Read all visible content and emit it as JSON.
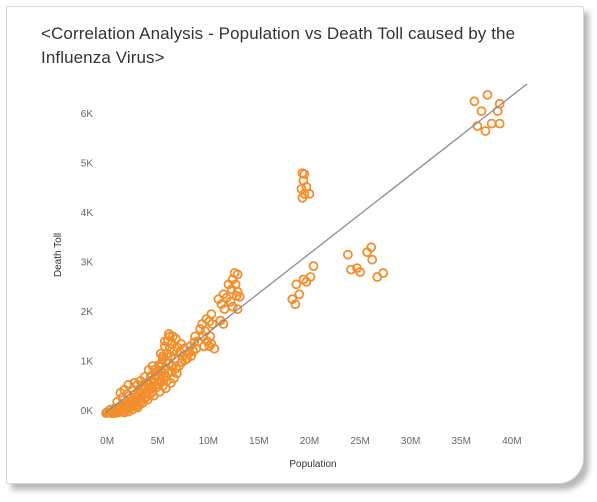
{
  "title": "<Correlation Analysis - Population vs Death Toll caused by the Influenza Virus>",
  "colors": {
    "marker": "#F28E2B",
    "trend_line": "#8c8c8c",
    "axis_text": "#666666"
  },
  "chart_data": {
    "type": "scatter",
    "title": "<Correlation Analysis - Population vs Death Toll caused by the Influenza Virus>",
    "xlabel": "Population",
    "ylabel": "Death Toll",
    "xlim": [
      -1000000,
      41500000
    ],
    "ylim": [
      -150,
      6600
    ],
    "x_ticks": [
      0,
      5000000,
      10000000,
      15000000,
      20000000,
      25000000,
      30000000,
      35000000,
      40000000
    ],
    "x_tick_labels": [
      "0M",
      "5M",
      "10M",
      "15M",
      "20M",
      "25M",
      "30M",
      "35M",
      "40M"
    ],
    "y_ticks": [
      0,
      1000,
      2000,
      3000,
      4000,
      5000,
      6000
    ],
    "y_tick_labels": [
      "0K",
      "1K",
      "2K",
      "3K",
      "4K",
      "5K",
      "6K"
    ],
    "grid": false,
    "marker": "hollow-circle",
    "trend_line": {
      "x": [
        -200000,
        41500000
      ],
      "y": [
        -50,
        6600
      ]
    },
    "points": [
      [
        36300000,
        6250
      ],
      [
        37600000,
        6380
      ],
      [
        38800000,
        6200
      ],
      [
        37000000,
        6050
      ],
      [
        38600000,
        6050
      ],
      [
        36600000,
        5750
      ],
      [
        37400000,
        5650
      ],
      [
        38000000,
        5800
      ],
      [
        38800000,
        5800
      ],
      [
        19300000,
        4800
      ],
      [
        19500000,
        4780
      ],
      [
        19400000,
        4650
      ],
      [
        19700000,
        4520
      ],
      [
        19200000,
        4480
      ],
      [
        19500000,
        4380
      ],
      [
        20000000,
        4380
      ],
      [
        19300000,
        4300
      ],
      [
        23800000,
        3150
      ],
      [
        24100000,
        2850
      ],
      [
        24700000,
        2880
      ],
      [
        25000000,
        2800
      ],
      [
        25700000,
        3200
      ],
      [
        26100000,
        3300
      ],
      [
        26200000,
        3050
      ],
      [
        26700000,
        2700
      ],
      [
        27300000,
        2780
      ],
      [
        20400000,
        2920
      ],
      [
        19400000,
        2650
      ],
      [
        19700000,
        2600
      ],
      [
        18700000,
        2550
      ],
      [
        20100000,
        2700
      ],
      [
        18300000,
        2250
      ],
      [
        18600000,
        2150
      ],
      [
        19000000,
        2350
      ],
      [
        12600000,
        2780
      ],
      [
        12900000,
        2750
      ],
      [
        12400000,
        2650
      ],
      [
        12700000,
        2550
      ],
      [
        12300000,
        2450
      ],
      [
        12800000,
        2320
      ],
      [
        13100000,
        2300
      ],
      [
        11500000,
        2350
      ],
      [
        11800000,
        2280
      ],
      [
        12200000,
        2200
      ],
      [
        12400000,
        2100
      ],
      [
        12900000,
        2050
      ],
      [
        11000000,
        2250
      ],
      [
        11300000,
        2150
      ],
      [
        11600000,
        2050
      ],
      [
        10300000,
        1950
      ],
      [
        9800000,
        1850
      ],
      [
        10100000,
        1800
      ],
      [
        10400000,
        1750
      ],
      [
        11200000,
        1820
      ],
      [
        11500000,
        1750
      ],
      [
        9700000,
        1600
      ],
      [
        10200000,
        1500
      ],
      [
        9500000,
        1500
      ],
      [
        9900000,
        1400
      ],
      [
        10300000,
        1350
      ],
      [
        9600000,
        1300
      ],
      [
        10100000,
        1300
      ],
      [
        8600000,
        1380
      ],
      [
        8200000,
        1300
      ],
      [
        8500000,
        1200
      ],
      [
        8000000,
        1150
      ],
      [
        7900000,
        1050
      ],
      [
        8300000,
        1100
      ],
      [
        8800000,
        1250
      ],
      [
        6100000,
        1550
      ],
      [
        6500000,
        1500
      ],
      [
        6800000,
        1450
      ],
      [
        6000000,
        1400
      ],
      [
        6400000,
        1350
      ],
      [
        5700000,
        1300
      ],
      [
        6200000,
        1250
      ],
      [
        6600000,
        1200
      ],
      [
        5900000,
        1150
      ],
      [
        6300000,
        1100
      ],
      [
        5500000,
        1100
      ],
      [
        6700000,
        1050
      ],
      [
        5800000,
        1000
      ],
      [
        6100000,
        950
      ],
      [
        5400000,
        950
      ],
      [
        6500000,
        900
      ],
      [
        5200000,
        880
      ],
      [
        5700000,
        850
      ],
      [
        6800000,
        850
      ],
      [
        5000000,
        800
      ],
      [
        5400000,
        780
      ],
      [
        6000000,
        760
      ],
      [
        6400000,
        780
      ],
      [
        4800000,
        720
      ],
      [
        5100000,
        700
      ],
      [
        5600000,
        680
      ],
      [
        4700000,
        640
      ],
      [
        5300000,
        620
      ],
      [
        5900000,
        600
      ],
      [
        4300000,
        600
      ],
      [
        4600000,
        560
      ],
      [
        5000000,
        540
      ],
      [
        4100000,
        520
      ],
      [
        4400000,
        480
      ],
      [
        4900000,
        470
      ],
      [
        5500000,
        500
      ],
      [
        3800000,
        460
      ],
      [
        4200000,
        440
      ],
      [
        3600000,
        420
      ],
      [
        4000000,
        390
      ],
      [
        4500000,
        380
      ],
      [
        3400000,
        370
      ],
      [
        3800000,
        340
      ],
      [
        4200000,
        320
      ],
      [
        3100000,
        330
      ],
      [
        3500000,
        300
      ],
      [
        3900000,
        280
      ],
      [
        2900000,
        280
      ],
      [
        3300000,
        250
      ],
      [
        3700000,
        240
      ],
      [
        2600000,
        230
      ],
      [
        3000000,
        210
      ],
      [
        3400000,
        190
      ],
      [
        2400000,
        190
      ],
      [
        2800000,
        170
      ],
      [
        3200000,
        150
      ],
      [
        2200000,
        150
      ],
      [
        2600000,
        130
      ],
      [
        3000000,
        110
      ],
      [
        2000000,
        120
      ],
      [
        2400000,
        100
      ],
      [
        2800000,
        80
      ],
      [
        1800000,
        90
      ],
      [
        2200000,
        70
      ],
      [
        1600000,
        60
      ],
      [
        2000000,
        40
      ],
      [
        1400000,
        40
      ],
      [
        1800000,
        20
      ],
      [
        1200000,
        20
      ],
      [
        1600000,
        0
      ],
      [
        1000000,
        0
      ],
      [
        1400000,
        -20
      ],
      [
        800000,
        -10
      ],
      [
        1200000,
        -30
      ],
      [
        600000,
        -20
      ],
      [
        1000000,
        -40
      ],
      [
        400000,
        -30
      ],
      [
        800000,
        -50
      ],
      [
        200000,
        -40
      ],
      [
        600000,
        -50
      ],
      [
        0,
        -30
      ],
      [
        400000,
        -50
      ],
      [
        -100000,
        -50
      ],
      [
        300000,
        20
      ],
      [
        700000,
        40
      ],
      [
        1100000,
        60
      ],
      [
        1500000,
        100
      ],
      [
        1900000,
        140
      ],
      [
        2300000,
        240
      ],
      [
        2700000,
        320
      ],
      [
        3100000,
        410
      ],
      [
        3500000,
        510
      ],
      [
        3900000,
        560
      ],
      [
        4300000,
        700
      ],
      [
        4700000,
        820
      ],
      [
        5100000,
        920
      ],
      [
        5500000,
        1050
      ],
      [
        3000000,
        520
      ],
      [
        2500000,
        420
      ],
      [
        2000000,
        330
      ],
      [
        1500000,
        260
      ],
      [
        1000000,
        180
      ],
      [
        1700000,
        420
      ],
      [
        1300000,
        360
      ],
      [
        2100000,
        520
      ],
      [
        3300000,
        600
      ],
      [
        2700000,
        560
      ],
      [
        3700000,
        680
      ],
      [
        4100000,
        820
      ],
      [
        4500000,
        900
      ],
      [
        5700000,
        1400
      ],
      [
        6200000,
        1500
      ],
      [
        5300000,
        1150
      ],
      [
        6900000,
        1280
      ],
      [
        7200000,
        1180
      ],
      [
        7500000,
        1100
      ],
      [
        7400000,
        980
      ],
      [
        7700000,
        1020
      ],
      [
        7100000,
        900
      ],
      [
        6900000,
        750
      ],
      [
        6600000,
        650
      ],
      [
        6300000,
        560
      ],
      [
        5800000,
        450
      ],
      [
        5200000,
        380
      ],
      [
        4600000,
        300
      ],
      [
        4000000,
        220
      ],
      [
        3500000,
        150
      ],
      [
        3000000,
        60
      ],
      [
        2500000,
        20
      ],
      [
        2100000,
        -20
      ],
      [
        1700000,
        -40
      ],
      [
        8700000,
        1500
      ],
      [
        9200000,
        1650
      ],
      [
        9000000,
        1400
      ],
      [
        7600000,
        1250
      ],
      [
        7300000,
        1350
      ],
      [
        12000000,
        2550
      ],
      [
        12900000,
        2400
      ],
      [
        9400000,
        1750
      ],
      [
        10600000,
        1250
      ]
    ]
  }
}
